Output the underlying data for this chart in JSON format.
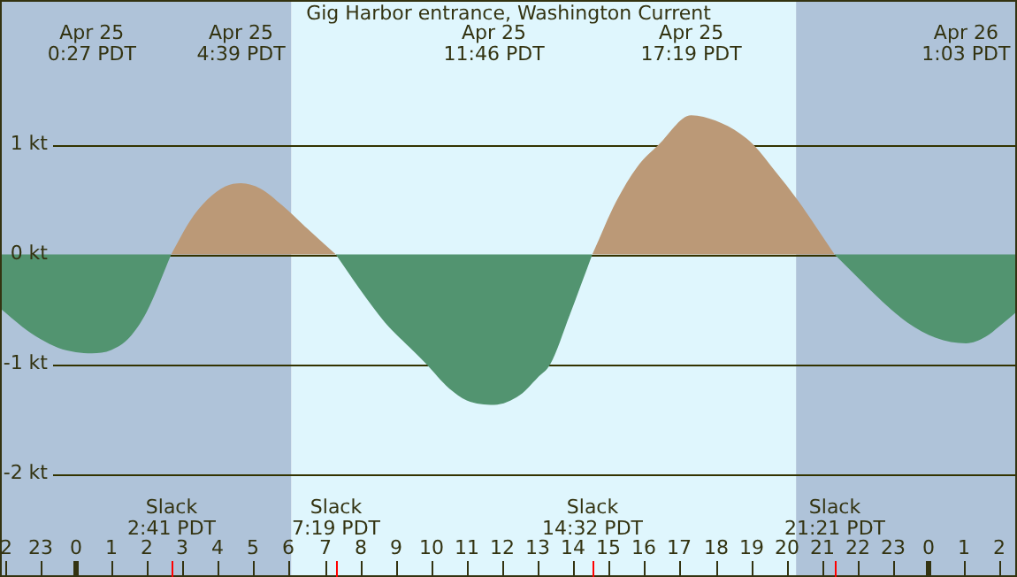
{
  "chart_data": {
    "type": "area",
    "title": "Gig Harbor entrance, Washington Current",
    "x": [
      "--04-24T21:52",
      "--04-24T22:30",
      "--04-24T23:00",
      "--04-24T23:30",
      "--04-25T00:00",
      "--04-25T00:27",
      "--04-25T01:00",
      "--04-25T01:30",
      "--04-25T02:00",
      "--04-25T02:41",
      "--04-25T03:12",
      "--04-25T03:42",
      "--04-25T04:12",
      "--04-25T04:39",
      "--04-25T05:12",
      "--04-25T05:48",
      "--04-25T06:30",
      "--04-25T07:19",
      "--04-25T08:00",
      "--04-25T08:42",
      "--04-25T09:30",
      "--04-25T09:52",
      "--04-25T10:30",
      "--04-25T11:00",
      "--04-25T11:46",
      "--04-25T12:30",
      "--04-25T13:00",
      "--04-25T13:21",
      "--04-25T13:54",
      "--04-25T14:32",
      "--04-25T15:12",
      "--04-25T15:48",
      "--04-25T16:24",
      "--04-25T17:19",
      "--04-25T18:00",
      "--04-25T18:42",
      "--04-25T19:04",
      "--04-25T19:42",
      "--04-25T20:18",
      "--04-25T21:21",
      "--04-25T22:00",
      "--04-25T22:42",
      "--04-25T23:24",
      "--04-26T00:12",
      "--04-26T01:03",
      "--04-26T01:36",
      "--04-26T02:00",
      "--04-26T02:29"
    ],
    "series": [
      {
        "color": "#bb9977",
        "values": [
          null,
          null,
          null,
          null,
          null,
          null,
          null,
          null,
          null,
          0,
          0.3,
          0.5,
          0.62,
          0.65,
          0.6,
          0.45,
          0.24,
          0,
          null,
          null,
          null,
          null,
          null,
          null,
          null,
          null,
          null,
          null,
          null,
          0,
          0.48,
          0.8,
          1.0,
          1.27,
          1.22,
          1.1,
          1.0,
          0.75,
          0.5,
          0,
          null,
          null,
          null,
          null,
          null,
          null,
          null,
          null
        ]
      },
      {
        "color": "#529470",
        "values": [
          -0.49,
          -0.66,
          -0.77,
          -0.85,
          -0.89,
          -0.9,
          -0.87,
          -0.76,
          -0.52,
          0,
          null,
          null,
          null,
          null,
          null,
          null,
          null,
          0,
          -0.32,
          -0.62,
          -0.88,
          -1.0,
          -1.22,
          -1.33,
          -1.37,
          -1.28,
          -1.12,
          -1.0,
          -0.55,
          0,
          null,
          null,
          null,
          null,
          null,
          null,
          null,
          null,
          null,
          0,
          -0.21,
          -0.43,
          -0.62,
          -0.76,
          -0.81,
          -0.75,
          -0.65,
          -0.52
        ]
      }
    ],
    "xticks": [
      {
        "value": "--04-24T22:00",
        "label": "2"
      },
      {
        "value": "--04-24T23:00",
        "label": "23"
      },
      {
        "value": "--04-25T00:00",
        "label": "0"
      },
      {
        "value": "--04-25T01:00",
        "label": "1"
      },
      {
        "value": "--04-25T02:00",
        "label": "2"
      },
      {
        "value": "--04-25T03:00",
        "label": "3"
      },
      {
        "value": "--04-25T04:00",
        "label": "4"
      },
      {
        "value": "--04-25T05:00",
        "label": "5"
      },
      {
        "value": "--04-25T06:00",
        "label": "6"
      },
      {
        "value": "--04-25T07:00",
        "label": "7"
      },
      {
        "value": "--04-25T08:00",
        "label": "8"
      },
      {
        "value": "--04-25T09:00",
        "label": "9"
      },
      {
        "value": "--04-25T10:00",
        "label": "10"
      },
      {
        "value": "--04-25T11:00",
        "label": "11"
      },
      {
        "value": "--04-25T12:00",
        "label": "12"
      },
      {
        "value": "--04-25T13:00",
        "label": "13"
      },
      {
        "value": "--04-25T14:00",
        "label": "14"
      },
      {
        "value": "--04-25T15:00",
        "label": "15"
      },
      {
        "value": "--04-25T16:00",
        "label": "16"
      },
      {
        "value": "--04-25T17:00",
        "label": "17"
      },
      {
        "value": "--04-25T18:00",
        "label": "18"
      },
      {
        "value": "--04-25T19:00",
        "label": "19"
      },
      {
        "value": "--04-25T20:00",
        "label": "20"
      },
      {
        "value": "--04-25T21:00",
        "label": "21"
      },
      {
        "value": "--04-25T22:00",
        "label": "22"
      },
      {
        "value": "--04-25T23:00",
        "label": "23"
      },
      {
        "value": "--04-26T00:00",
        "label": "0"
      },
      {
        "value": "--04-26T01:00",
        "label": "1"
      },
      {
        "value": "--04-26T02:00",
        "label": "2"
      }
    ],
    "xlim": [
      "--04-24T21:52",
      "--04-26T02:29"
    ],
    "ylim": [
      -2.94,
      2.32
    ],
    "yticks": [
      {
        "value": -2,
        "label": "-2 kt"
      },
      {
        "value": -1,
        "label": "-1 kt"
      },
      {
        "value": 0,
        "label": "0 kt"
      },
      {
        "value": 1,
        "label": "1 kt"
      }
    ],
    "grid": "y",
    "bands": [
      {
        "axis": "x",
        "from": "--04-24T21:52",
        "to": "--04-25T06:04",
        "color": "#afc3d9"
      },
      {
        "axis": "x",
        "from": "--04-25T06:04",
        "to": "--04-25T20:16",
        "color": "#dff6fd"
      },
      {
        "axis": "x",
        "from": "--04-25T20:16",
        "to": "--04-26T02:29",
        "color": "#afc3d9"
      }
    ],
    "annotations": [
      "Apr 25\n0:27 PDT",
      "Apr 25\n4:39 PDT",
      "Apr 25\n11:46 PDT",
      "Apr 25\n17:19 PDT",
      "Apr 26\n1:03 PDT",
      "Slack\n2:41 PDT",
      "Slack\n7:19 PDT",
      "Slack\n14:32 PDT",
      "Slack\n21:21 PDT"
    ]
  }
}
